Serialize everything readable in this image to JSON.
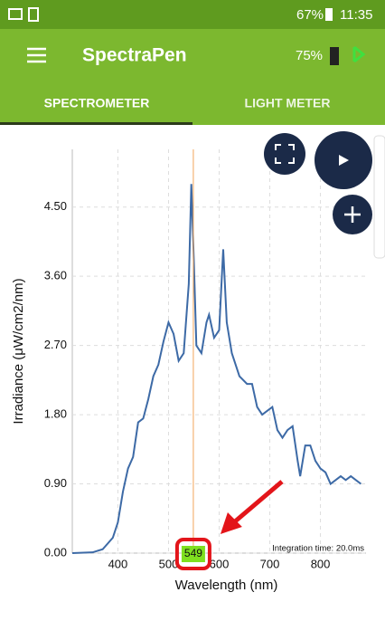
{
  "status_bar": {
    "battery": "67%",
    "time": "11:35"
  },
  "app_bar": {
    "title": "SpectraPen",
    "device_battery": "75%"
  },
  "tabs": [
    "SPECTROMETER",
    "LIGHT METER"
  ],
  "chart_data": {
    "type": "line",
    "xlabel": "Wavelength (nm)",
    "ylabel": "Irradiance (μW/cm2/nm)",
    "annotation": "Integration time: 20.0ms",
    "marker": 549,
    "color": "#3d6aa6",
    "grid": true,
    "x": [
      310,
      350,
      370,
      390,
      400,
      410,
      420,
      430,
      440,
      450,
      460,
      470,
      480,
      490,
      500,
      510,
      520,
      530,
      540,
      545,
      550,
      555,
      565,
      575,
      580,
      590,
      600,
      608,
      615,
      625,
      640,
      655,
      665,
      675,
      685,
      695,
      705,
      715,
      725,
      735,
      745,
      755,
      760,
      770,
      780,
      790,
      800,
      810,
      820,
      830,
      840,
      850,
      860,
      870,
      880
    ],
    "values": [
      0.0,
      0.01,
      0.05,
      0.2,
      0.4,
      0.8,
      1.1,
      1.25,
      1.7,
      1.75,
      2.0,
      2.3,
      2.45,
      2.75,
      3.0,
      2.85,
      2.5,
      2.6,
      3.5,
      4.8,
      3.8,
      2.7,
      2.6,
      3.0,
      3.1,
      2.8,
      2.9,
      3.95,
      3.0,
      2.6,
      2.3,
      2.2,
      2.2,
      1.9,
      1.8,
      1.85,
      1.9,
      1.6,
      1.5,
      1.6,
      1.65,
      1.2,
      1.0,
      1.4,
      1.4,
      1.2,
      1.1,
      1.05,
      0.9,
      0.95,
      1.0,
      0.95,
      1.0,
      0.95,
      0.9
    ],
    "xlim": [
      310,
      890
    ],
    "xticks": [
      400,
      500,
      600,
      700,
      800
    ],
    "ylim": [
      0,
      5.25
    ],
    "yticks": [
      {
        "value": 0,
        "label": "0.00"
      },
      {
        "value": 0.9,
        "label": "0.90"
      },
      {
        "value": 1.8,
        "label": "1.80"
      },
      {
        "value": 2.7,
        "label": "2.70"
      },
      {
        "value": 3.6,
        "label": "3.60"
      },
      {
        "value": 4.5,
        "label": "4.50"
      }
    ]
  }
}
